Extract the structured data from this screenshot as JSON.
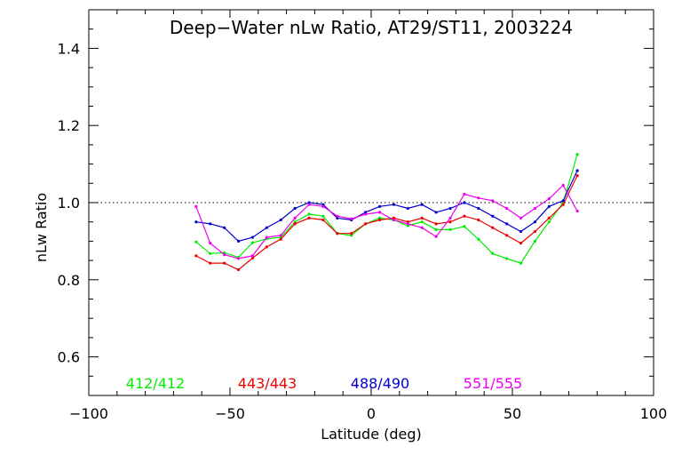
{
  "chart_data": {
    "type": "line",
    "title": "Deep−Water nLw Ratio, AT29/ST11, 2003224",
    "xlabel": "Latitude (deg)",
    "ylabel": "nLw Ratio",
    "xlim": [
      -100,
      100
    ],
    "ylim": [
      0.5,
      1.5
    ],
    "xticks": [
      -100,
      -50,
      0,
      50,
      100
    ],
    "xtick_labels": [
      "−100",
      "−50",
      "0",
      "50",
      "100"
    ],
    "yticks": [
      0.6,
      0.8,
      1.0,
      1.2,
      1.4
    ],
    "ytick_labels": [
      "0.6",
      "0.8",
      "1.0",
      "1.2",
      "1.4"
    ],
    "reference_line": 1.0,
    "grid": false,
    "legend_position": "bottom inside plot",
    "x": [
      -62,
      -57,
      -52,
      -47,
      -42,
      -37,
      -32,
      -27,
      -22,
      -17,
      -12,
      -7,
      -2,
      3,
      8,
      13,
      18,
      23,
      28,
      33,
      38,
      43,
      48,
      53,
      58,
      63,
      68,
      73
    ],
    "series": [
      {
        "name": "412/412",
        "color": "#00ee00",
        "values": [
          0.898,
          0.868,
          0.87,
          0.858,
          0.896,
          0.906,
          0.91,
          0.95,
          0.97,
          0.965,
          0.92,
          0.915,
          0.945,
          0.96,
          0.955,
          0.94,
          0.95,
          0.93,
          0.93,
          0.938,
          0.905,
          0.868,
          0.855,
          0.843,
          0.9,
          0.95,
          1.0,
          1.125
        ]
      },
      {
        "name": "443/443",
        "color": "#ee0000",
        "values": [
          0.862,
          0.843,
          0.843,
          0.826,
          0.856,
          0.885,
          0.905,
          0.945,
          0.96,
          0.955,
          0.92,
          0.92,
          0.945,
          0.955,
          0.96,
          0.95,
          0.96,
          0.945,
          0.95,
          0.965,
          0.955,
          0.935,
          0.915,
          0.895,
          0.925,
          0.96,
          0.995,
          1.07
        ]
      },
      {
        "name": "488/490",
        "color": "#0000cc",
        "values": [
          0.95,
          0.945,
          0.935,
          0.9,
          0.91,
          0.935,
          0.955,
          0.985,
          1.0,
          0.995,
          0.96,
          0.955,
          0.975,
          0.99,
          0.995,
          0.985,
          0.995,
          0.975,
          0.985,
          1.0,
          0.985,
          0.965,
          0.945,
          0.925,
          0.95,
          0.99,
          1.005,
          1.083
        ]
      },
      {
        "name": "551/555",
        "color": "#ee00ee",
        "values": [
          0.99,
          0.895,
          0.865,
          0.855,
          0.862,
          0.91,
          0.915,
          0.96,
          0.995,
          0.99,
          0.965,
          0.958,
          0.97,
          0.975,
          0.955,
          0.945,
          0.935,
          0.912,
          0.96,
          1.022,
          1.012,
          1.005,
          0.985,
          0.96,
          0.985,
          1.01,
          1.045,
          0.978
        ]
      }
    ]
  }
}
